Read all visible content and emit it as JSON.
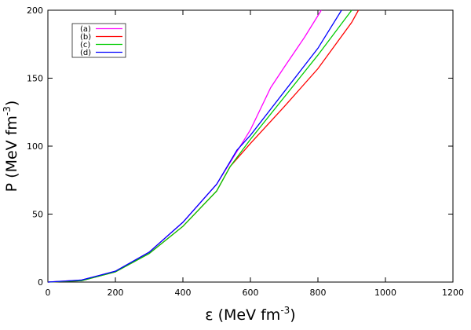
{
  "chart_data": {
    "type": "line",
    "xlabel": [
      "ε (MeV fm",
      "-3",
      ")"
    ],
    "ylabel": [
      "P (MeV fm",
      "-3",
      ")"
    ],
    "xlim": [
      0,
      1200
    ],
    "ylim": [
      0,
      200
    ],
    "xticks": [
      0,
      200,
      400,
      600,
      800,
      1000,
      1200
    ],
    "yticks": [
      0,
      50,
      100,
      150,
      200
    ],
    "legend": "upper left",
    "series": [
      {
        "name": "(a)",
        "color": "#ff00ff",
        "x": [
          0,
          100,
          200,
          300,
          400,
          500,
          560,
          600,
          660,
          700,
          760,
          810
        ],
        "values": [
          0,
          1.5,
          8,
          22,
          44,
          72,
          96,
          112,
          143,
          158,
          180,
          200
        ]
      },
      {
        "name": "(b)",
        "color": "#ff0000",
        "x": [
          0,
          100,
          200,
          300,
          400,
          500,
          540,
          600,
          700,
          800,
          900,
          920
        ],
        "values": [
          0,
          1,
          7.5,
          21,
          41,
          67,
          85,
          102,
          129,
          157,
          191,
          200
        ]
      },
      {
        "name": "(c)",
        "color": "#00cc00",
        "x": [
          0,
          100,
          200,
          300,
          400,
          500,
          540,
          600,
          700,
          800,
          900
        ],
        "values": [
          0,
          1,
          7.5,
          21,
          41,
          67,
          85,
          105,
          136,
          167,
          200
        ]
      },
      {
        "name": "(d)",
        "color": "#0000ff",
        "x": [
          0,
          100,
          200,
          300,
          400,
          500,
          560,
          600,
          700,
          800,
          870
        ],
        "values": [
          0,
          1.5,
          8,
          22,
          44,
          72,
          97,
          108,
          140,
          172,
          200
        ]
      }
    ]
  }
}
